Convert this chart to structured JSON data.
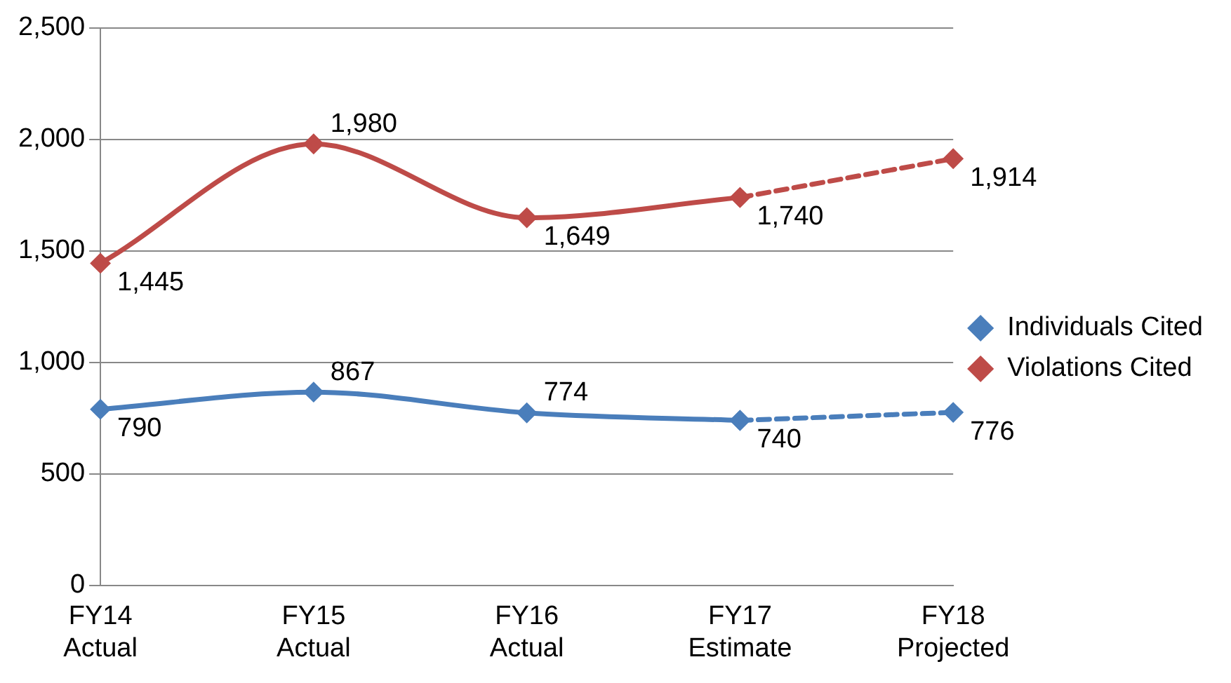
{
  "chart_data": {
    "type": "line",
    "categories": [
      "FY14 Actual",
      "FY15 Actual",
      "FY16 Actual",
      "FY17 Estimate",
      "FY18 Projected"
    ],
    "ylim": [
      0,
      2500
    ],
    "yticks": [
      {
        "value": 0,
        "label": "0"
      },
      {
        "value": 500,
        "label": "500"
      },
      {
        "value": 1000,
        "label": "1,000"
      },
      {
        "value": 1500,
        "label": "1,500"
      },
      {
        "value": 2000,
        "label": "2,000"
      },
      {
        "value": 2500,
        "label": "2,500"
      }
    ],
    "grid": "y",
    "legend": "right",
    "marker": "diamond",
    "series": [
      {
        "name": "Individuals Cited",
        "color": "#4a7ebb",
        "line_style": "solid",
        "values": [
          790,
          867,
          774,
          740,
          null
        ],
        "value_labels": [
          "790",
          "867",
          "774",
          "740",
          null
        ]
      },
      {
        "name": "Violations Cited",
        "color": "#be4b48",
        "line_style": "solid",
        "values": [
          1445,
          1980,
          1649,
          1740,
          null
        ],
        "value_labels": [
          "1,445",
          "1,980",
          "1,649",
          "1,740",
          null
        ]
      },
      {
        "color": "#4a7ebb",
        "line_style": "dashed",
        "values": [
          null,
          null,
          null,
          740,
          776
        ],
        "value_labels": [
          null,
          null,
          null,
          null,
          "776"
        ]
      },
      {
        "color": "#be4b48",
        "line_style": "dashed",
        "values": [
          null,
          null,
          null,
          1740,
          1914
        ],
        "value_labels": [
          null,
          null,
          null,
          null,
          "1,914"
        ]
      }
    ]
  }
}
